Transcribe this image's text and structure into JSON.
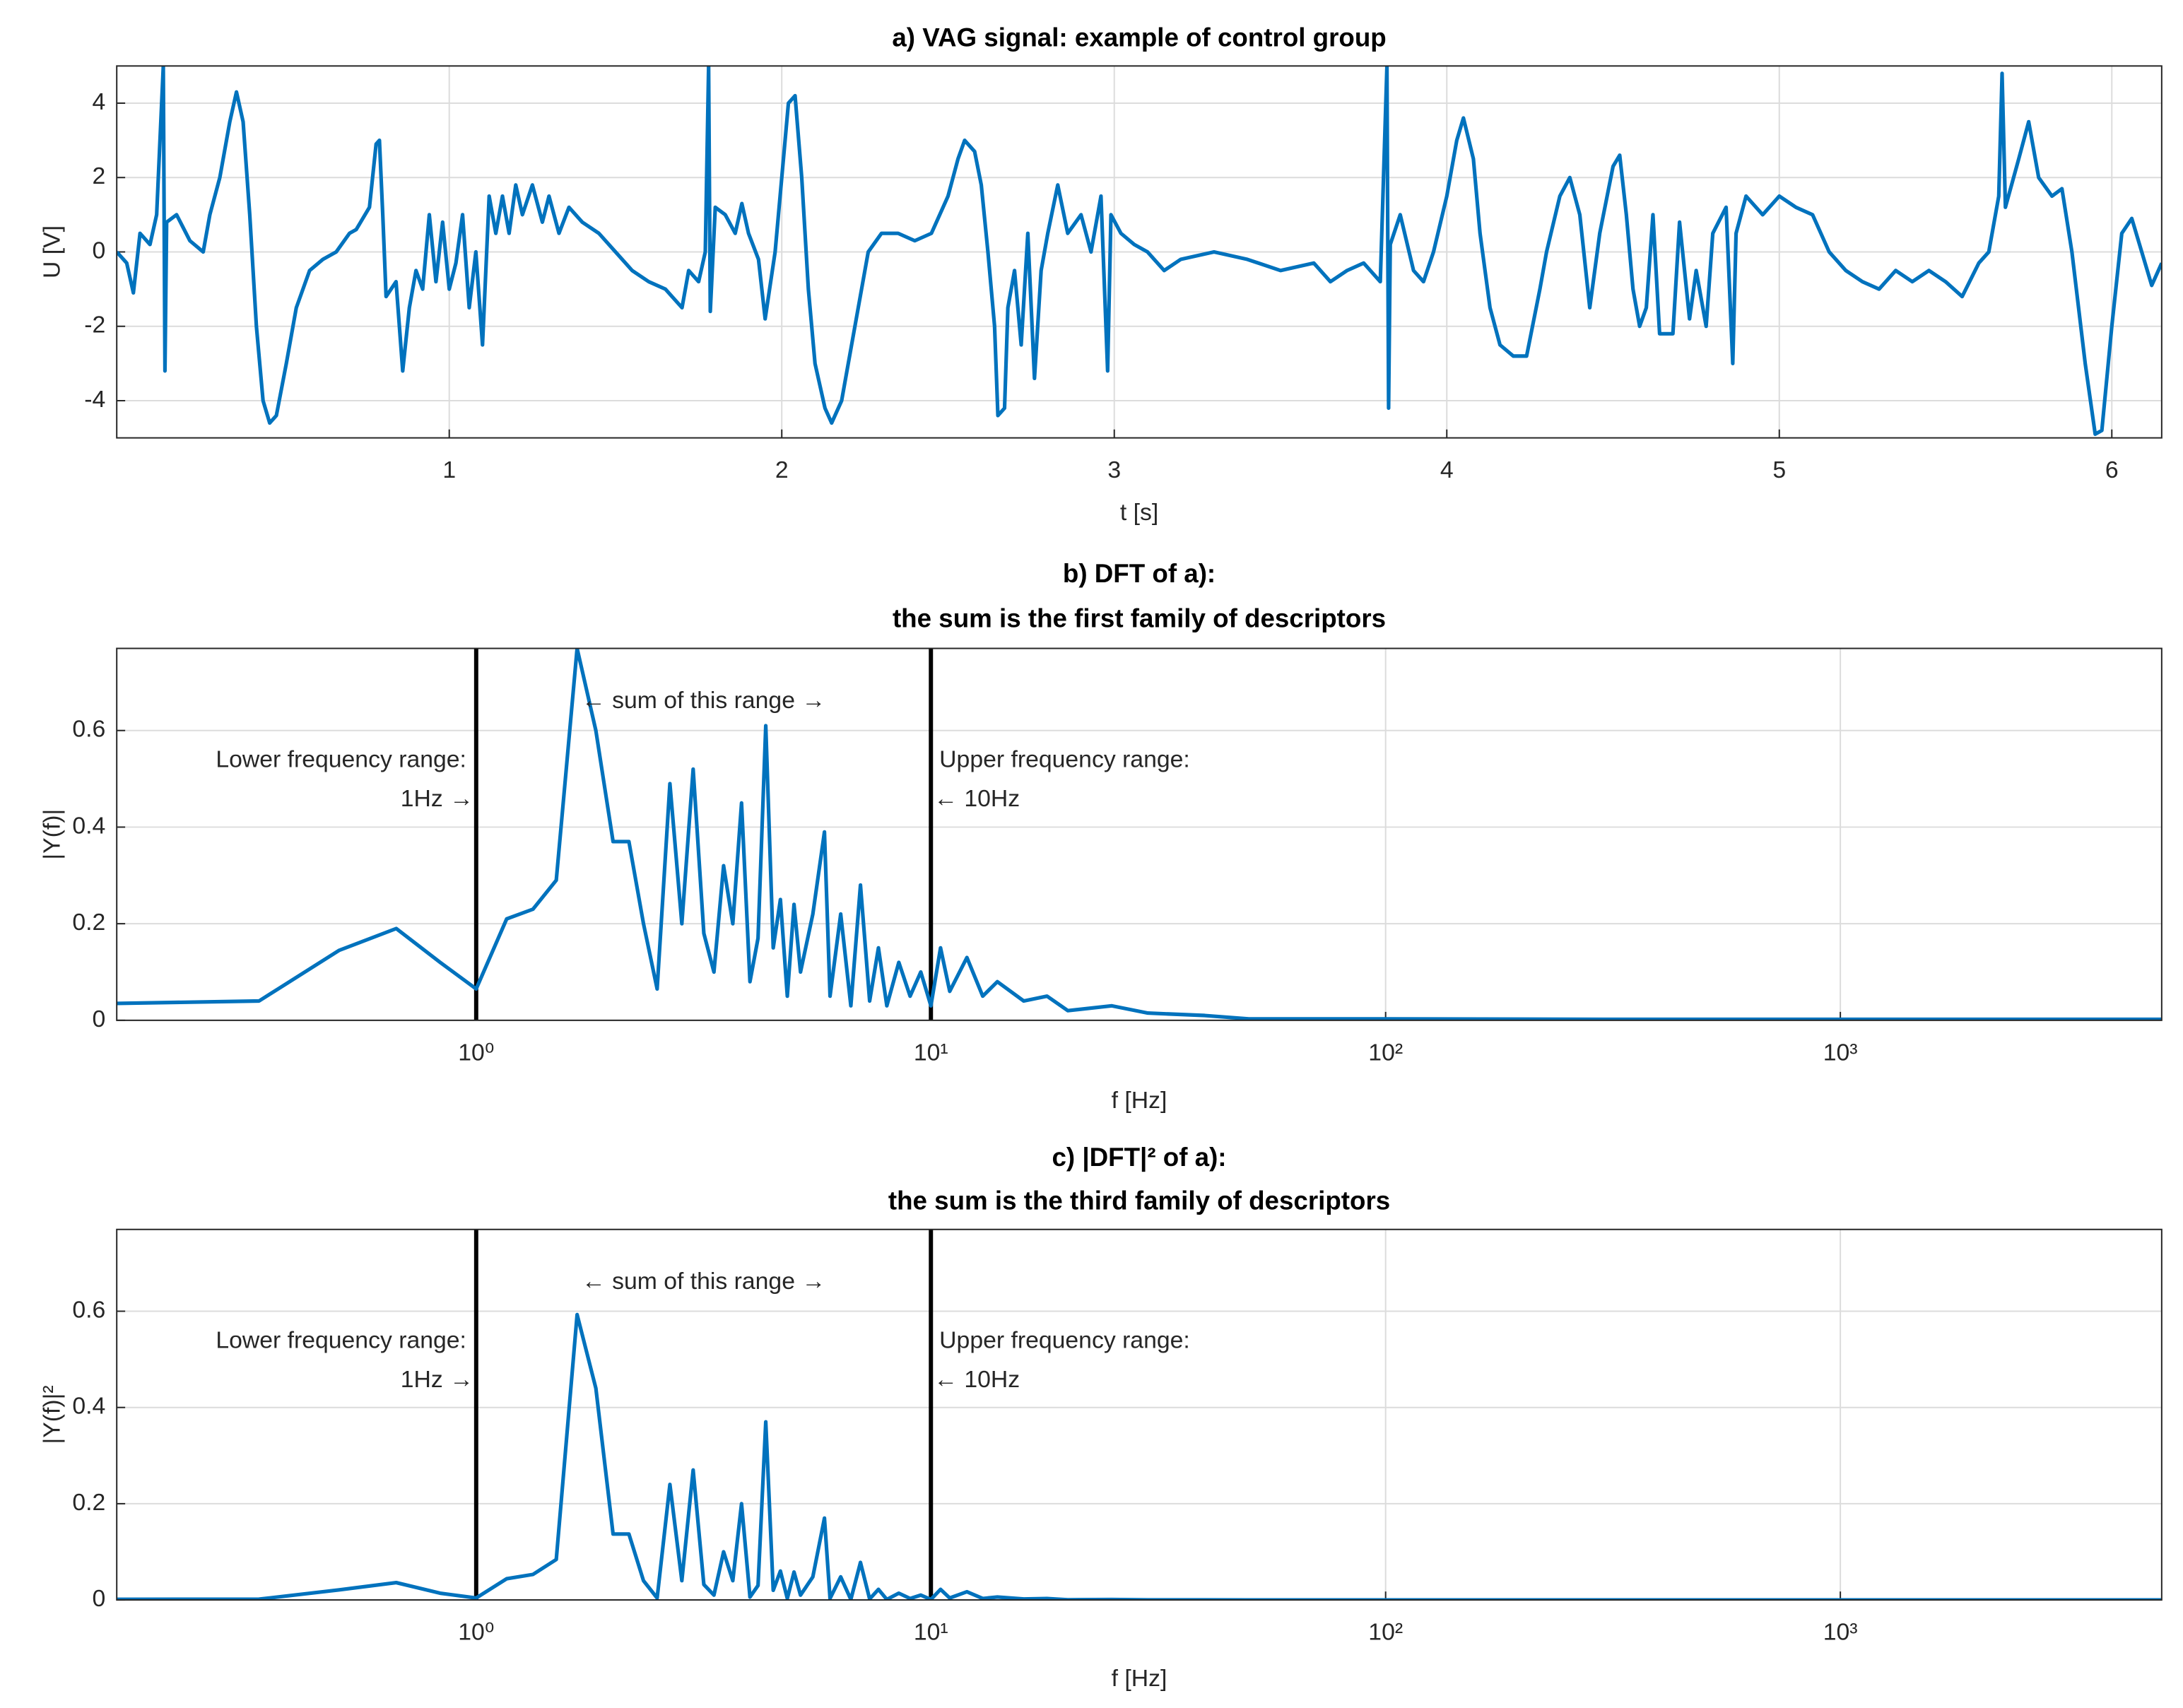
{
  "chart_data": [
    {
      "type": "line",
      "title": [
        "a) VAG signal: example of control group"
      ],
      "xlabel": "t [s]",
      "ylabel": "U [V]",
      "xlim": [
        0,
        6.15
      ],
      "ylim": [
        -5,
        5
      ],
      "xticks": [
        1,
        2,
        3,
        4,
        5,
        6
      ],
      "yticks": [
        -4,
        -2,
        0,
        2,
        4
      ],
      "grid": true,
      "color": "#0072bd",
      "x": [
        0,
        0.03,
        0.05,
        0.07,
        0.1,
        0.12,
        0.14,
        0.145,
        0.15,
        0.18,
        0.22,
        0.26,
        0.28,
        0.31,
        0.34,
        0.36,
        0.38,
        0.4,
        0.42,
        0.44,
        0.46,
        0.48,
        0.51,
        0.54,
        0.58,
        0.62,
        0.66,
        0.7,
        0.72,
        0.76,
        0.78,
        0.79,
        0.8,
        0.81,
        0.84,
        0.86,
        0.88,
        0.9,
        0.92,
        0.94,
        0.96,
        0.98,
        1.0,
        1.02,
        1.04,
        1.06,
        1.08,
        1.1,
        1.12,
        1.14,
        1.16,
        1.18,
        1.2,
        1.22,
        1.25,
        1.28,
        1.3,
        1.33,
        1.36,
        1.4,
        1.45,
        1.5,
        1.55,
        1.6,
        1.65,
        1.7,
        1.72,
        1.75,
        1.77,
        1.78,
        1.785,
        1.8,
        1.83,
        1.86,
        1.88,
        1.9,
        1.93,
        1.95,
        1.98,
        2.0,
        2.02,
        2.04,
        2.06,
        2.08,
        2.1,
        2.13,
        2.15,
        2.18,
        2.2,
        2.23,
        2.26,
        2.3,
        2.35,
        2.4,
        2.45,
        2.5,
        2.53,
        2.55,
        2.58,
        2.6,
        2.62,
        2.64,
        2.65,
        2.67,
        2.68,
        2.7,
        2.72,
        2.74,
        2.76,
        2.78,
        2.8,
        2.83,
        2.86,
        2.9,
        2.93,
        2.96,
        2.98,
        2.99,
        3.02,
        3.06,
        3.1,
        3.15,
        3.2,
        3.3,
        3.4,
        3.5,
        3.6,
        3.65,
        3.7,
        3.75,
        3.8,
        3.82,
        3.825,
        3.83,
        3.86,
        3.9,
        3.93,
        3.96,
        4.0,
        4.03,
        4.05,
        4.08,
        4.1,
        4.13,
        4.16,
        4.2,
        4.24,
        4.28,
        4.3,
        4.34,
        4.37,
        4.4,
        4.43,
        4.46,
        4.5,
        4.52,
        4.54,
        4.56,
        4.58,
        4.6,
        4.62,
        4.64,
        4.68,
        4.7,
        4.73,
        4.75,
        4.78,
        4.8,
        4.84,
        4.86,
        4.87,
        4.9,
        4.95,
        5.0,
        5.05,
        5.1,
        5.15,
        5.2,
        5.25,
        5.3,
        5.35,
        5.4,
        5.45,
        5.5,
        5.55,
        5.6,
        5.63,
        5.66,
        5.67,
        5.68,
        5.72,
        5.75,
        5.78,
        5.82,
        5.85,
        5.88,
        5.92,
        5.95,
        5.97,
        6.0,
        6.03,
        6.06,
        6.09,
        6.12,
        6.15
      ],
      "values": [
        0,
        -0.3,
        -1.1,
        0.5,
        0.2,
        1,
        5,
        -3.2,
        0.8,
        1,
        0.3,
        0,
        1,
        2,
        3.5,
        4.3,
        3.5,
        1,
        -2,
        -4,
        -4.6,
        -4.4,
        -3,
        -1.5,
        -0.5,
        -0.2,
        0,
        0.5,
        0.6,
        1.2,
        2.9,
        3,
        1,
        -1.2,
        -0.8,
        -3.2,
        -1.5,
        -0.5,
        -1,
        1,
        -0.8,
        0.8,
        -1,
        -0.3,
        1,
        -1.5,
        0,
        -2.5,
        1.5,
        0.5,
        1.5,
        0.5,
        1.8,
        1,
        1.8,
        0.8,
        1.5,
        0.5,
        1.2,
        0.8,
        0.5,
        0,
        -0.5,
        -0.8,
        -1,
        -1.5,
        -0.5,
        -0.8,
        0,
        5,
        -1.6,
        1.2,
        1,
        0.5,
        1.3,
        0.5,
        -0.2,
        -1.8,
        0,
        2,
        4,
        4.2,
        2,
        -1,
        -3,
        -4.2,
        -4.6,
        -4,
        -3,
        -1.5,
        0,
        0.5,
        0.5,
        0.3,
        0.5,
        1.5,
        2.5,
        3,
        2.7,
        1.8,
        0,
        -2,
        -4.4,
        -4.2,
        -1.5,
        -0.5,
        -2.5,
        0.5,
        -3.4,
        -0.5,
        0.5,
        1.8,
        0.5,
        1,
        0,
        1.5,
        -3.2,
        1,
        0.5,
        0.2,
        0,
        -0.5,
        -0.2,
        0,
        -0.2,
        -0.5,
        -0.3,
        -0.8,
        -0.5,
        -0.3,
        -0.8,
        5,
        -4.2,
        0.2,
        1,
        -0.5,
        -0.8,
        0,
        1.5,
        3,
        3.6,
        2.5,
        0.5,
        -1.5,
        -2.5,
        -2.8,
        -2.8,
        -1,
        0,
        1.5,
        2,
        1,
        -1.5,
        0.5,
        2.3,
        2.6,
        1,
        -1,
        -2,
        -1.5,
        1,
        -2.2,
        -2.2,
        0.8,
        -1.8,
        -0.5,
        -2,
        0.5,
        1.2,
        -3,
        0.5,
        1.5,
        1,
        1.5,
        1.2,
        1,
        0,
        -0.5,
        -0.8,
        -1,
        -0.5,
        -0.8,
        -0.5,
        -0.8,
        -1.2,
        -0.3,
        0,
        1.5,
        4.8,
        1.2,
        2.5,
        3.5,
        2,
        1.5,
        1.7,
        0,
        -3,
        -4.9,
        -4.8,
        -2,
        0.5,
        0.9,
        0,
        -0.9,
        -0.3
      ]
    },
    {
      "type": "line",
      "title": [
        "b) DFT of a):",
        "the sum is the first family of descriptors"
      ],
      "xlabel": "f [Hz]",
      "ylabel": "|Y(f)|",
      "xscale": "log",
      "xlim": [
        0.162,
        5090
      ],
      "ylim": [
        0,
        0.77
      ],
      "xticks": [
        {
          "value": 1,
          "label": "10⁰"
        },
        {
          "value": 10,
          "label": "10¹"
        },
        {
          "value": 100,
          "label": "10²"
        },
        {
          "value": 1000,
          "label": "10³"
        }
      ],
      "yticks": [
        0,
        0.2,
        0.4,
        0.6
      ],
      "grid": true,
      "color": "#0072bd",
      "vlines": [
        1,
        10
      ],
      "vline_color": "#000000",
      "annotations": [
        "← sum of this range →",
        "Lower frequency range:",
        "1Hz →",
        "Upper frequency range:",
        "← 10Hz"
      ],
      "x": [
        0.162,
        0.333,
        0.5,
        0.667,
        0.833,
        1.0,
        1.167,
        1.333,
        1.5,
        1.667,
        1.833,
        2.0,
        2.167,
        2.333,
        2.5,
        2.667,
        2.833,
        3.0,
        3.167,
        3.333,
        3.5,
        3.667,
        3.833,
        4.0,
        4.167,
        4.333,
        4.5,
        4.667,
        4.833,
        5.0,
        5.167,
        5.5,
        5.833,
        6.0,
        6.333,
        6.667,
        7.0,
        7.333,
        7.667,
        8.0,
        8.5,
        9.0,
        9.5,
        10,
        10.5,
        11,
        12,
        13,
        14,
        16,
        18,
        20,
        25,
        30,
        40,
        50,
        100,
        300,
        1000,
        5090
      ],
      "values": [
        0.035,
        0.04,
        0.145,
        0.19,
        0.12,
        0.065,
        0.21,
        0.23,
        0.29,
        0.77,
        0.6,
        0.37,
        0.37,
        0.2,
        0.065,
        0.49,
        0.2,
        0.52,
        0.18,
        0.1,
        0.32,
        0.2,
        0.45,
        0.08,
        0.17,
        0.61,
        0.15,
        0.25,
        0.05,
        0.24,
        0.1,
        0.22,
        0.39,
        0.05,
        0.22,
        0.03,
        0.28,
        0.04,
        0.15,
        0.03,
        0.12,
        0.05,
        0.1,
        0.03,
        0.15,
        0.06,
        0.13,
        0.05,
        0.08,
        0.04,
        0.05,
        0.02,
        0.03,
        0.015,
        0.01,
        0.003,
        0.003,
        0.002,
        0.002,
        0.002
      ]
    },
    {
      "type": "line",
      "title": [
        "c) |DFT|² of a):",
        "the sum is the third family of descriptors"
      ],
      "xlabel": "f [Hz]",
      "ylabel": "|Y(f)|²",
      "xscale": "log",
      "xlim": [
        0.162,
        5090
      ],
      "ylim": [
        0,
        0.77
      ],
      "xticks": [
        {
          "value": 1,
          "label": "10⁰"
        },
        {
          "value": 10,
          "label": "10¹"
        },
        {
          "value": 100,
          "label": "10²"
        },
        {
          "value": 1000,
          "label": "10³"
        }
      ],
      "yticks": [
        0,
        0.2,
        0.4,
        0.6
      ],
      "grid": true,
      "color": "#0072bd",
      "vlines": [
        1,
        10
      ],
      "vline_color": "#000000",
      "annotations": [
        "← sum of this range →",
        "Lower frequency range:",
        "1Hz →",
        "Upper frequency range:",
        "← 10Hz"
      ],
      "x": [
        0.162,
        0.333,
        0.5,
        0.667,
        0.833,
        1.0,
        1.167,
        1.333,
        1.5,
        1.667,
        1.833,
        2.0,
        2.167,
        2.333,
        2.5,
        2.667,
        2.833,
        3.0,
        3.167,
        3.333,
        3.5,
        3.667,
        3.833,
        4.0,
        4.167,
        4.333,
        4.5,
        4.667,
        4.833,
        5.0,
        5.167,
        5.5,
        5.833,
        6.0,
        6.333,
        6.667,
        7.0,
        7.333,
        7.667,
        8.0,
        8.5,
        9.0,
        9.5,
        10,
        10.5,
        11,
        12,
        13,
        14,
        16,
        18,
        20,
        25,
        30,
        40,
        50,
        100,
        300,
        1000,
        5090
      ],
      "values": [
        0.0012,
        0.0016,
        0.021,
        0.036,
        0.014,
        0.004,
        0.044,
        0.053,
        0.084,
        0.593,
        0.44,
        0.137,
        0.137,
        0.04,
        0.004,
        0.24,
        0.04,
        0.27,
        0.032,
        0.01,
        0.1,
        0.04,
        0.2,
        0.006,
        0.03,
        0.37,
        0.02,
        0.06,
        0.003,
        0.058,
        0.01,
        0.048,
        0.17,
        0.003,
        0.048,
        0.001,
        0.078,
        0.002,
        0.022,
        0.001,
        0.014,
        0.003,
        0.01,
        0.001,
        0.022,
        0.004,
        0.017,
        0.003,
        0.006,
        0.002,
        0.003,
        0.0004,
        0.001,
        0.0002,
        0.0001,
        0,
        0,
        0,
        0,
        0
      ]
    }
  ]
}
